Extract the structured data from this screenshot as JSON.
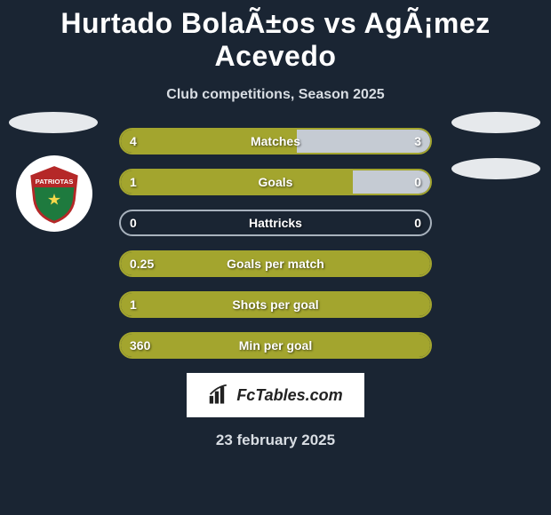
{
  "title": "Hurtado BolaÃ±os vs AgÃ¡mez Acevedo",
  "subtitle": "Club competitions, Season 2025",
  "date": "23 february 2025",
  "logo_text": "FcTables.com",
  "colors": {
    "bg": "#1a2533",
    "p1": "#a3a52e",
    "p2": "#c5cbd3",
    "border_active": "#a3a52e",
    "border_neutral": "#a8b2bd"
  },
  "stats": [
    {
      "label": "Matches",
      "left_val": "4",
      "right_val": "3",
      "left_pct": 57,
      "right_pct": 43,
      "right_fill": true
    },
    {
      "label": "Goals",
      "left_val": "1",
      "right_val": "0",
      "left_pct": 75,
      "right_pct": 25,
      "right_fill": true
    },
    {
      "label": "Hattricks",
      "left_val": "0",
      "right_val": "0",
      "left_pct": 0,
      "right_pct": 0,
      "right_fill": false
    },
    {
      "label": "Goals per match",
      "left_val": "0.25",
      "right_val": "",
      "left_pct": 100,
      "right_pct": 0,
      "right_fill": false
    },
    {
      "label": "Shots per goal",
      "left_val": "1",
      "right_val": "",
      "left_pct": 100,
      "right_pct": 0,
      "right_fill": false
    },
    {
      "label": "Min per goal",
      "left_val": "360",
      "right_val": "",
      "left_pct": 100,
      "right_pct": 0,
      "right_fill": false
    }
  ]
}
